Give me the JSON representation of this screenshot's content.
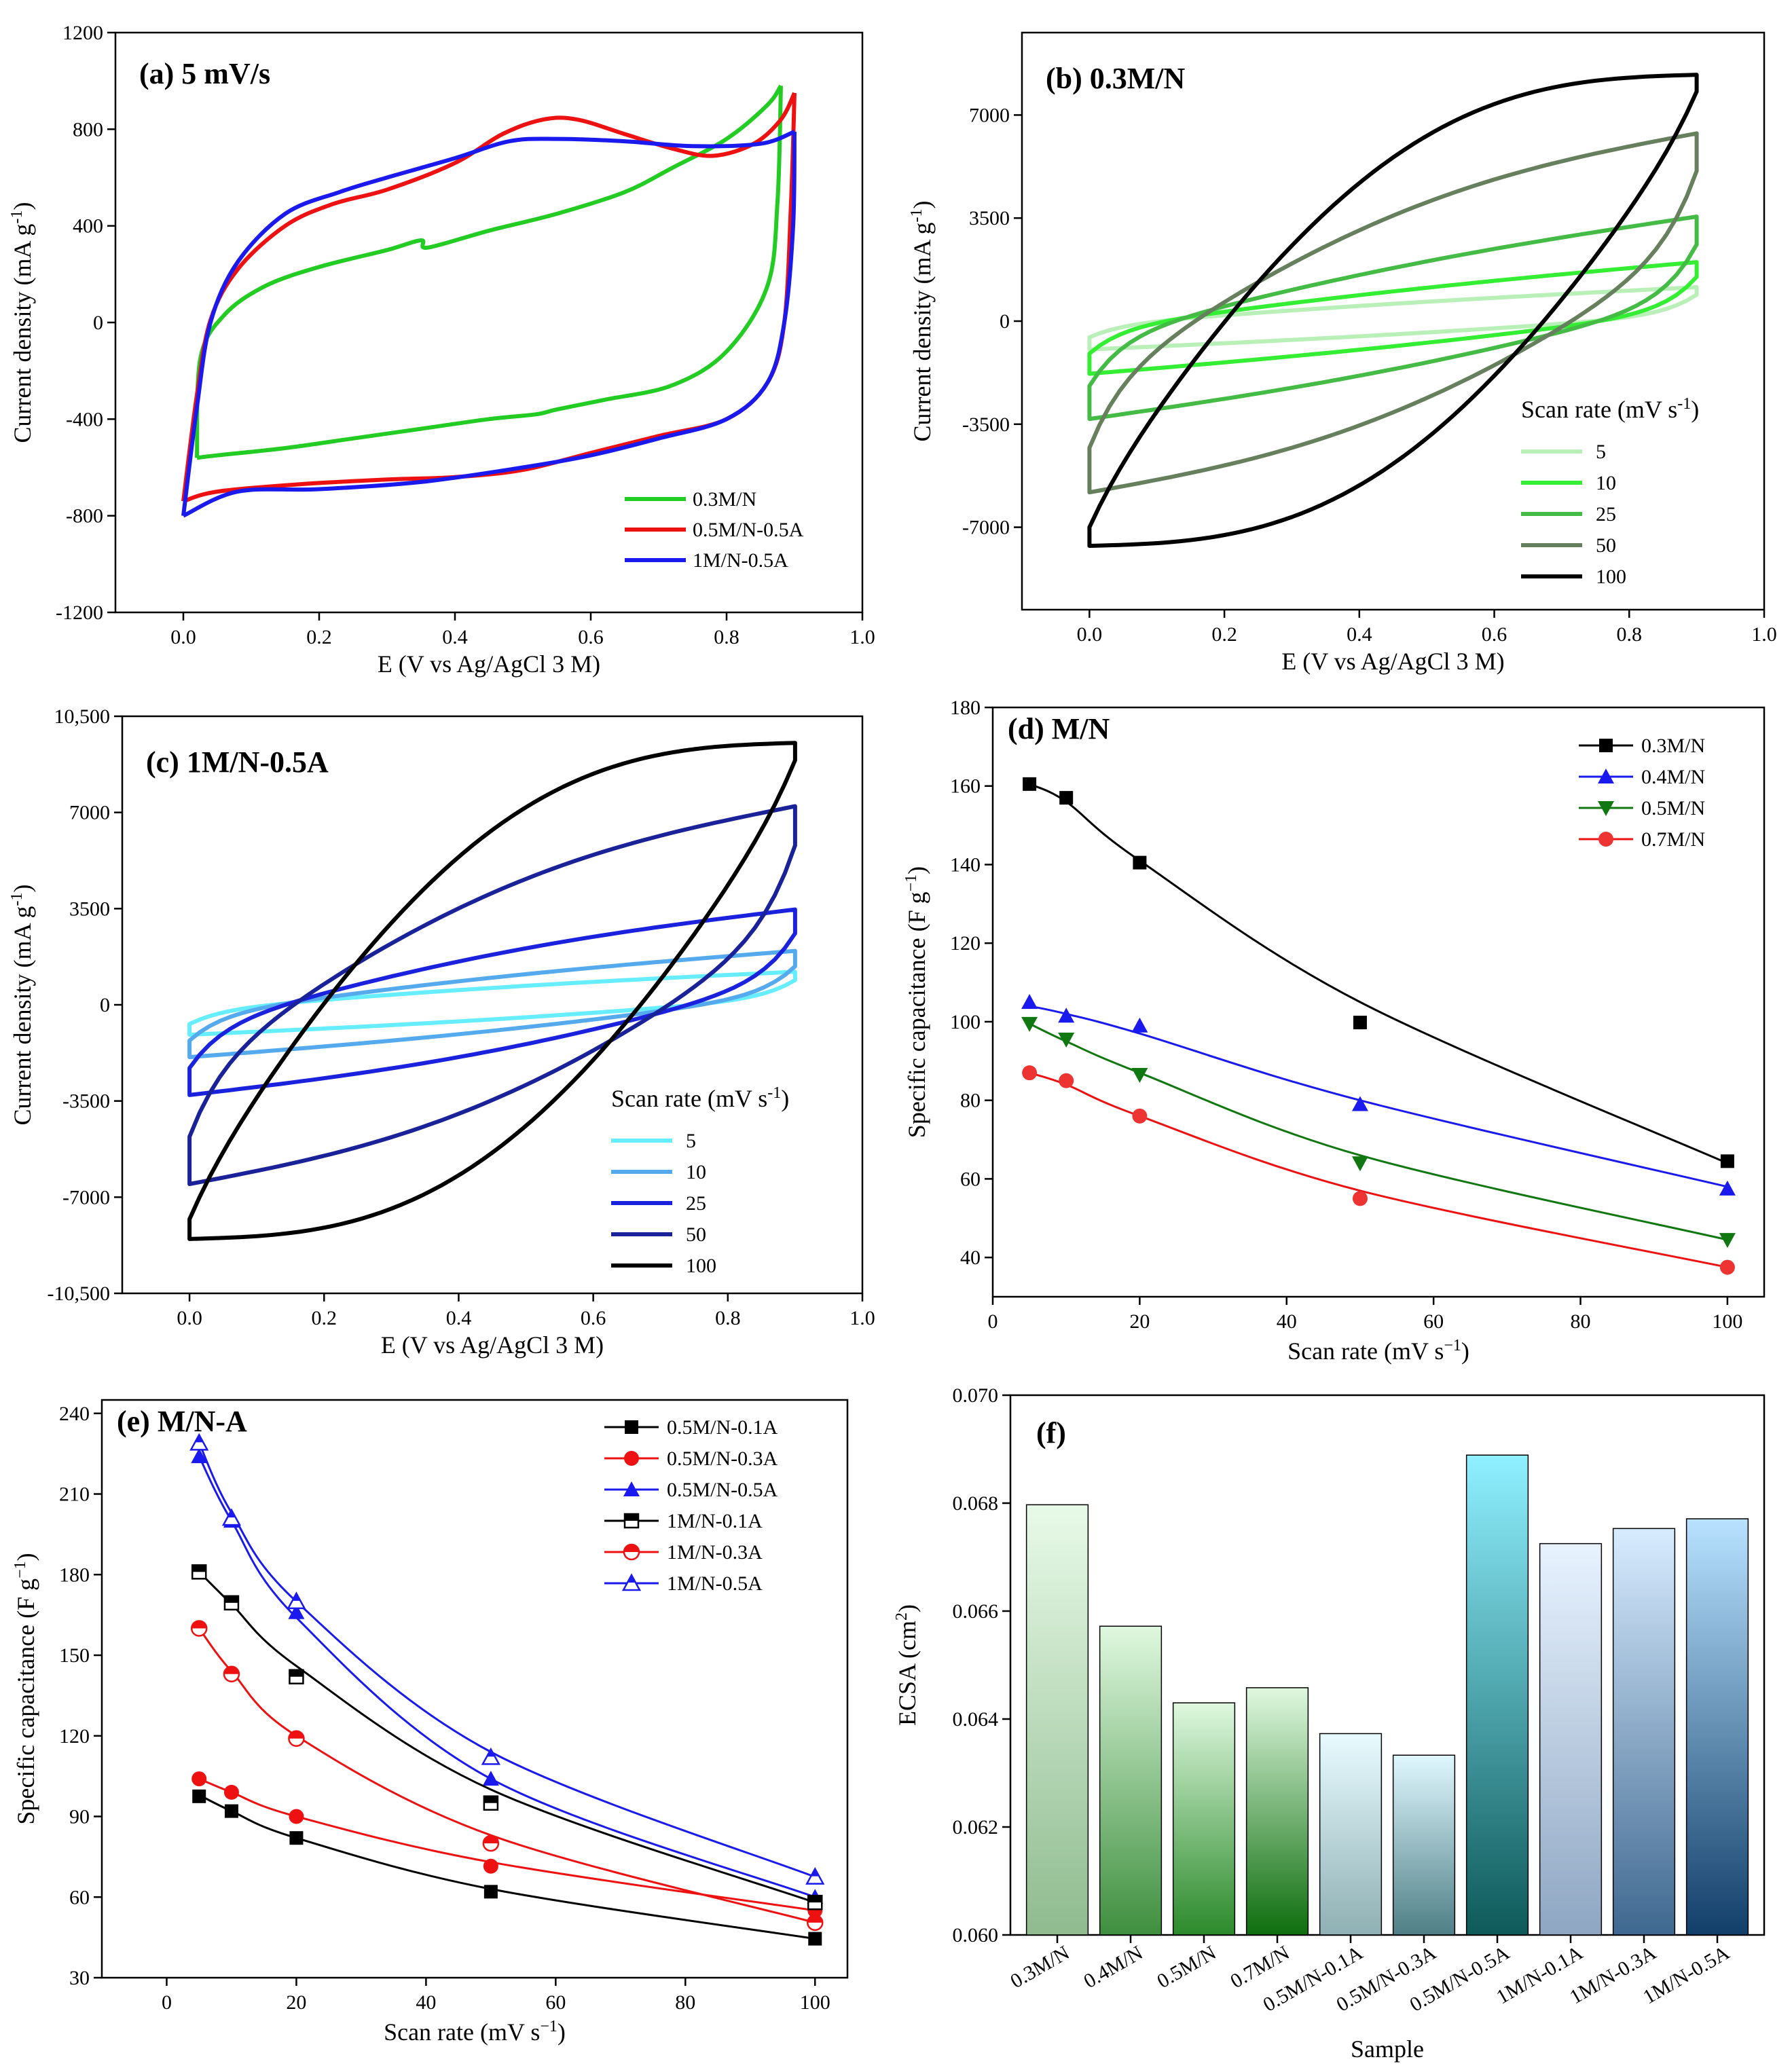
{
  "chart_data": [
    {
      "panel": "a",
      "type": "line",
      "title": "(a) 5 mV/s",
      "xlabel": "E (V vs Ag/AgCl 3 M)",
      "ylabel": "Current density (mA g",
      "ylabel_sup": "-1",
      "ylabel_tail": ")",
      "xlim": [
        -0.1,
        1.0
      ],
      "ylim": [
        -1200,
        1200
      ],
      "xticks": [
        "0.0",
        "0.2",
        "0.4",
        "0.6",
        "0.8",
        "1.0"
      ],
      "yticks": [
        "-1200",
        "-800",
        "-400",
        "0",
        "400",
        "800",
        "1200"
      ],
      "xtick_vals": [
        0,
        0.2,
        0.4,
        0.6,
        0.8,
        1.0
      ],
      "ytick_vals": [
        -1200,
        -800,
        -400,
        0,
        400,
        800,
        1200
      ],
      "series": [
        {
          "name": "0.3M/N",
          "color": "#22cc22",
          "upper": [
            [
              0.02,
              -560
            ],
            [
              0.025,
              -150
            ],
            [
              0.06,
              30
            ],
            [
              0.12,
              150
            ],
            [
              0.2,
              230
            ],
            [
              0.3,
              300
            ],
            [
              0.35,
              340
            ],
            [
              0.36,
              310
            ],
            [
              0.45,
              380
            ],
            [
              0.55,
              450
            ],
            [
              0.65,
              540
            ],
            [
              0.72,
              640
            ],
            [
              0.8,
              760
            ],
            [
              0.86,
              900
            ],
            [
              0.88,
              980
            ]
          ],
          "lower": [
            [
              0.88,
              980
            ],
            [
              0.875,
              500
            ],
            [
              0.86,
              150
            ],
            [
              0.8,
              -120
            ],
            [
              0.72,
              -260
            ],
            [
              0.62,
              -320
            ],
            [
              0.55,
              -360
            ],
            [
              0.52,
              -380
            ],
            [
              0.45,
              -400
            ],
            [
              0.35,
              -440
            ],
            [
              0.25,
              -480
            ],
            [
              0.15,
              -520
            ],
            [
              0.05,
              -550
            ],
            [
              0.02,
              -560
            ]
          ]
        },
        {
          "name": "0.5M/N-0.5A",
          "color": "#ee1111",
          "upper": [
            [
              0.0,
              -740
            ],
            [
              0.02,
              -300
            ],
            [
              0.04,
              10
            ],
            [
              0.08,
              220
            ],
            [
              0.15,
              400
            ],
            [
              0.22,
              490
            ],
            [
              0.3,
              550
            ],
            [
              0.4,
              660
            ],
            [
              0.47,
              780
            ],
            [
              0.53,
              840
            ],
            [
              0.58,
              840
            ],
            [
              0.65,
              780
            ],
            [
              0.72,
              720
            ],
            [
              0.78,
              690
            ],
            [
              0.84,
              740
            ],
            [
              0.88,
              840
            ],
            [
              0.9,
              950
            ]
          ],
          "lower": [
            [
              0.9,
              950
            ],
            [
              0.895,
              500
            ],
            [
              0.885,
              0
            ],
            [
              0.86,
              -250
            ],
            [
              0.8,
              -400
            ],
            [
              0.7,
              -470
            ],
            [
              0.6,
              -540
            ],
            [
              0.5,
              -610
            ],
            [
              0.4,
              -640
            ],
            [
              0.3,
              -650
            ],
            [
              0.17,
              -670
            ],
            [
              0.05,
              -700
            ],
            [
              0.0,
              -740
            ]
          ]
        },
        {
          "name": "1M/N-0.5A",
          "color": "#1a1aee",
          "upper": [
            [
              0.0,
              -800
            ],
            [
              0.02,
              -350
            ],
            [
              0.04,
              0
            ],
            [
              0.08,
              250
            ],
            [
              0.15,
              450
            ],
            [
              0.23,
              540
            ],
            [
              0.3,
              600
            ],
            [
              0.4,
              680
            ],
            [
              0.48,
              750
            ],
            [
              0.55,
              760
            ],
            [
              0.65,
              750
            ],
            [
              0.75,
              730
            ],
            [
              0.85,
              740
            ],
            [
              0.9,
              790
            ]
          ],
          "lower": [
            [
              0.9,
              790
            ],
            [
              0.898,
              400
            ],
            [
              0.885,
              0
            ],
            [
              0.86,
              -250
            ],
            [
              0.8,
              -400
            ],
            [
              0.7,
              -480
            ],
            [
              0.6,
              -550
            ],
            [
              0.5,
              -600
            ],
            [
              0.35,
              -660
            ],
            [
              0.2,
              -690
            ],
            [
              0.08,
              -700
            ],
            [
              0.0,
              -800
            ]
          ]
        }
      ],
      "legend": [
        "0.3M/N",
        "0.5M/N-0.5A",
        " 1M/N-0.5A"
      ]
    },
    {
      "panel": "b",
      "type": "line",
      "title": "(b) 0.3M/N",
      "xlabel": "E (V vs Ag/AgCl 3 M)",
      "ylabel": "Current density (mA g",
      "ylabel_sup": "-1",
      "ylabel_tail": ")",
      "xlim": [
        -0.1,
        1.0
      ],
      "ylim": [
        -9800,
        9800
      ],
      "xticks": [
        "0.0",
        "0.2",
        "0.4",
        "0.6",
        "0.8",
        "1.0"
      ],
      "yticks": [
        "-7000",
        "-3500",
        "0",
        "3500",
        "7000"
      ],
      "xtick_vals": [
        0,
        0.2,
        0.4,
        0.6,
        0.8,
        1.0
      ],
      "ytick_vals": [
        -7000,
        -3500,
        0,
        3500,
        7000
      ],
      "legend_title": "Scan rate (mV s",
      "legend_title_sup": "-1",
      "legend_title_tail": ")",
      "series": [
        {
          "name": "5",
          "color": "#b8f0b8",
          "a": -550,
          "b": 900,
          "bend": 0.15
        },
        {
          "name": "10",
          "color": "#33ee33",
          "a": -1100,
          "b": 1500,
          "bend": 0.15
        },
        {
          "name": "25",
          "color": "#44bb44",
          "a": -2200,
          "b": 2600,
          "bend": 0.2
        },
        {
          "name": "50",
          "color": "#667f5c",
          "a": -4300,
          "b": 5100,
          "bend": 0.45
        },
        {
          "name": "100",
          "color": "#000000",
          "a": -7000,
          "b": 7800,
          "bend": 0.85
        }
      ]
    },
    {
      "panel": "c",
      "type": "line",
      "title": "(c) 1M/N-0.5A",
      "xlabel": "E (V vs Ag/AgCl 3 M)",
      "ylabel": "Current density (mA g",
      "ylabel_sup": "-1",
      "ylabel_tail": ")",
      "xlim": [
        -0.1,
        1.0
      ],
      "ylim": [
        -10500,
        10500
      ],
      "xticks": [
        "0.0",
        "0.2",
        "0.4",
        "0.6",
        "0.8",
        "1.0"
      ],
      "yticks": [
        "-10,500",
        "-7000",
        "-3500",
        "0",
        "3500",
        "7000",
        "10,500"
      ],
      "xtick_vals": [
        0,
        0.2,
        0.4,
        0.6,
        0.8,
        1.0
      ],
      "ytick_vals": [
        -10500,
        -7000,
        -3500,
        0,
        3500,
        7000,
        10500
      ],
      "legend_title": "Scan rate (mV s",
      "legend_title_sup": "-1",
      "legend_title_tail": ")",
      "series": [
        {
          "name": "5",
          "color": "#66eeff",
          "a": -700,
          "b": 900,
          "bend": 0.2
        },
        {
          "name": "10",
          "color": "#55aaee",
          "a": -1300,
          "b": 1400,
          "bend": 0.2
        },
        {
          "name": "25",
          "color": "#1a22dd",
          "a": -2300,
          "b": 2600,
          "bend": 0.3
        },
        {
          "name": "50",
          "color": "#1a2299",
          "a": -4800,
          "b": 5800,
          "bend": 0.45
        },
        {
          "name": "100",
          "color": "#000000",
          "a": -7800,
          "b": 8900,
          "bend": 0.85
        }
      ]
    },
    {
      "panel": "d",
      "type": "scatter",
      "title": "(d) M/N",
      "xlabel": "Scan rate (mV s",
      "xlabel_sup": "−1",
      "xlabel_tail": ")",
      "ylabel": "Specific capacitance (F g",
      "ylabel_sup": "−1",
      "ylabel_tail": ")",
      "xlim": [
        0,
        105
      ],
      "ylim": [
        30,
        180
      ],
      "xticks": [
        "0",
        "20",
        "40",
        "60",
        "80",
        "100"
      ],
      "yticks": [
        "40",
        "60",
        "80",
        "100",
        "120",
        "140",
        "160",
        "180"
      ],
      "xtick_vals": [
        0,
        20,
        40,
        60,
        80,
        100
      ],
      "ytick_vals": [
        40,
        60,
        80,
        100,
        120,
        140,
        160,
        180
      ],
      "x": [
        5,
        10,
        20,
        50,
        100
      ],
      "series": [
        {
          "name": "0.3M/N",
          "color": "#000000",
          "line": "#000000",
          "marker": "square",
          "values": [
            160.5,
            157,
            140.5,
            99.8,
            64.5
          ],
          "fit": [
            160.5,
            156,
            141,
            105,
            64
          ]
        },
        {
          "name": "0.4M/N",
          "color": "#1a1aee",
          "line": "#1a1aee",
          "marker": "triangle-up",
          "values": [
            105,
            101.5,
            99,
            79,
            57.5
          ],
          "fit": [
            104,
            102,
            97,
            80,
            58
          ]
        },
        {
          "name": "0.5M/N",
          "color": "#117711",
          "line": "#117711",
          "marker": "triangle-down",
          "values": [
            99.5,
            95.5,
            86.5,
            64,
            44.5
          ],
          "fit": [
            99.5,
            95,
            87,
            66,
            44.5
          ]
        },
        {
          "name": "0.7M/N",
          "color": "#ee3333",
          "line": "#ee1111",
          "marker": "circle",
          "values": [
            87,
            85,
            76,
            55,
            37.5
          ],
          "fit": [
            87,
            84,
            76,
            57,
            37.5
          ]
        }
      ]
    },
    {
      "panel": "e",
      "type": "scatter",
      "title": "(e) M/N-A",
      "xlabel": "Scan rate (mV s",
      "xlabel_sup": "−1",
      "xlabel_tail": ")",
      "ylabel": "Specific capacitance (F g",
      "ylabel_sup": "−1",
      "ylabel_tail": ")",
      "xlim": [
        -10,
        105
      ],
      "ylim": [
        30,
        245
      ],
      "xticks": [
        "0",
        "20",
        "40",
        "60",
        "80",
        "100"
      ],
      "yticks": [
        "30",
        "60",
        "90",
        "120",
        "150",
        "180",
        "210",
        "240"
      ],
      "xtick_vals": [
        0,
        20,
        40,
        60,
        80,
        100
      ],
      "ytick_vals": [
        30,
        60,
        90,
        120,
        150,
        180,
        210,
        240
      ],
      "x": [
        5,
        10,
        20,
        50,
        100
      ],
      "series": [
        {
          "name": "0.5M/N-0.1A",
          "color": "#000000",
          "line": "#000000",
          "marker": "square",
          "values": [
            97.5,
            92,
            82,
            62,
            44.5
          ],
          "fit": [
            98,
            92,
            82,
            63,
            44.5
          ]
        },
        {
          "name": "0.5M/N-0.3A",
          "color": "#ee1111",
          "line": "#ee1111",
          "marker": "circle",
          "values": [
            104,
            99,
            90,
            71.5,
            55
          ],
          "fit": [
            104,
            99,
            90,
            73,
            55
          ]
        },
        {
          "name": "0.5M/N-0.5A",
          "color": "#1a1aee",
          "line": "#1a1aee",
          "marker": "triangle-up",
          "values": [
            224,
            200,
            166,
            104,
            60
          ],
          "fit": [
            224,
            200,
            164,
            104,
            60
          ]
        },
        {
          "name": "1M/N-0.1A",
          "color": "#000000",
          "line": "#000000",
          "marker": "square-half",
          "values": [
            181,
            169.5,
            142,
            95,
            58
          ],
          "fit": [
            181,
            169,
            146,
            100,
            58
          ]
        },
        {
          "name": "1M/N-0.3A",
          "color": "#ee1111",
          "line": "#ee1111",
          "marker": "circle-half",
          "values": [
            160,
            143,
            119,
            80,
            50.5
          ],
          "fit": [
            160,
            144,
            120,
            83,
            50.5
          ]
        },
        {
          "name": "1M/N-0.5A",
          "color": "#1a1aee",
          "line": "#1a1aee",
          "marker": "triangle-half",
          "values": [
            229,
            201,
            170,
            112,
            67.5
          ],
          "fit": [
            229,
            203,
            170,
            114,
            67.5
          ]
        }
      ],
      "legend": [
        "0.5M/N-0.1A",
        "0.5M/N-0.3A",
        "0.5M/N-0.5A",
        "  1M/N-0.1A",
        "  1M/N-0.3A",
        "  1M/N-0.5A"
      ]
    },
    {
      "panel": "f",
      "type": "bar",
      "title": "(f)",
      "xlabel": "Sample",
      "ylabel": "ECSA (cm",
      "ylabel_sup": "2",
      "ylabel_tail": ")",
      "ylim": [
        0.06,
        0.07
      ],
      "yticks": [
        "0.060",
        "0.062",
        "0.064",
        "0.066",
        "0.068",
        "0.070"
      ],
      "ytick_vals": [
        0.06,
        0.062,
        0.064,
        0.066,
        0.068,
        0.07
      ],
      "categories": [
        "0.3M/N",
        "0.4M/N",
        "0.5M/N",
        "0.7M/N",
        "0.5M/N-0.1A",
        "0.5M/N-0.3A",
        "0.5M/N-0.5A",
        "1M/N-0.1A",
        "1M/N-0.3A",
        "1M/N-0.5A"
      ],
      "values": [
        0.06797,
        0.06572,
        0.0643,
        0.06458,
        0.06373,
        0.06333,
        0.06889,
        0.06725,
        0.06753,
        0.06771
      ],
      "gradients": [
        [
          "#e8fae8",
          "#8fbb8f"
        ],
        [
          "#dff8df",
          "#3f8f3f"
        ],
        [
          "#dff8df",
          "#2b8a2b"
        ],
        [
          "#dff8df",
          "#0e6e0e"
        ],
        [
          "#e8fbff",
          "#8fb0b4"
        ],
        [
          "#e0f8ff",
          "#4f7f86"
        ],
        [
          "#8ff0ff",
          "#0e5a5a"
        ],
        [
          "#e8f3ff",
          "#8ea6c2"
        ],
        [
          "#d8ecff",
          "#3f6890"
        ],
        [
          "#b8e2ff",
          "#123f6a"
        ]
      ]
    }
  ]
}
